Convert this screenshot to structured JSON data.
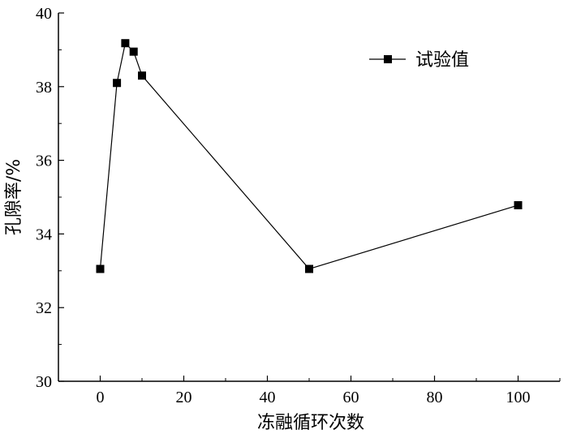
{
  "chart_data": {
    "type": "line",
    "title": "",
    "xlabel": "冻融循环次数",
    "ylabel": "孔隙率/%",
    "xlim": [
      -10,
      110
    ],
    "ylim": [
      30,
      40
    ],
    "xticks": [
      0,
      20,
      40,
      60,
      80,
      100
    ],
    "yticks": [
      30,
      32,
      34,
      36,
      38,
      40
    ],
    "xtick_labels": [
      "0",
      "20",
      "40",
      "60",
      "80",
      "100"
    ],
    "ytick_labels": [
      "30",
      "32",
      "34",
      "36",
      "38",
      "40"
    ],
    "grid": false,
    "legend_position": "top-right",
    "series": [
      {
        "name": "试验值",
        "marker": "square",
        "color": "#000000",
        "x": [
          0,
          4,
          6,
          8,
          10,
          50,
          100
        ],
        "y": [
          33.05,
          38.1,
          39.18,
          38.95,
          38.3,
          33.05,
          34.78
        ]
      }
    ]
  }
}
